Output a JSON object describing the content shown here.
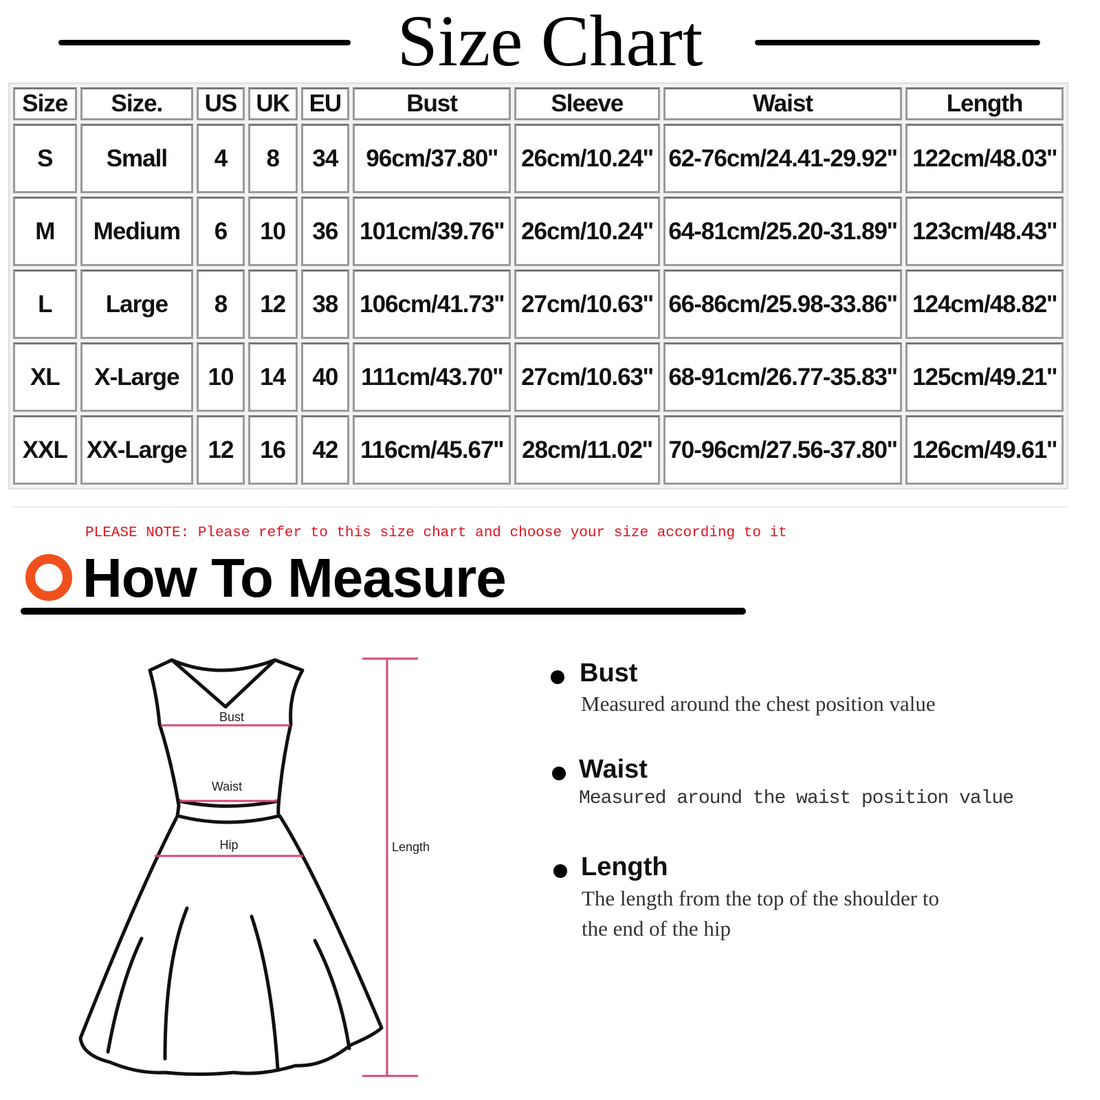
{
  "title": "Size Chart",
  "table": {
    "headers": [
      "Size",
      "Size.",
      "US",
      "UK",
      "EU",
      "Bust",
      "Sleeve",
      "Waist",
      "Length"
    ],
    "rows": [
      [
        "S",
        "Small",
        "4",
        "8",
        "34",
        "96cm/37.80''",
        "26cm/10.24''",
        "62-76cm/24.41-29.92''",
        "122cm/48.03''"
      ],
      [
        "M",
        "Medium",
        "6",
        "10",
        "36",
        "101cm/39.76''",
        "26cm/10.24''",
        "64-81cm/25.20-31.89''",
        "123cm/48.43''"
      ],
      [
        "L",
        "Large",
        "8",
        "12",
        "38",
        "106cm/41.73''",
        "27cm/10.63''",
        "66-86cm/25.98-33.86''",
        "124cm/48.82''"
      ],
      [
        "XL",
        "X-Large",
        "10",
        "14",
        "40",
        "111cm/43.70''",
        "27cm/10.63''",
        "68-91cm/26.77-35.83''",
        "125cm/49.21''"
      ],
      [
        "XXL",
        "XX-Large",
        "12",
        "16",
        "42",
        "116cm/45.67''",
        "28cm/11.02''",
        "70-96cm/27.56-37.80''",
        "126cm/49.61''"
      ]
    ]
  },
  "note": "PLEASE NOTE: Please refer to this size chart and choose your size according to it",
  "measure": {
    "title": "How To Measure",
    "accent": "#f0501e",
    "diagram": {
      "bust": "Bust",
      "waist": "Waist",
      "hip": "Hip",
      "length": "Length",
      "line_color": "#d9487a"
    },
    "items": [
      {
        "label": "Bust",
        "desc": [
          "Measured around the chest position value"
        ]
      },
      {
        "label": "Waist",
        "desc": [
          "Measured around the waist position value"
        ]
      },
      {
        "label": "Length",
        "desc": [
          "The length from the top of the shoulder to",
          "the end of the hip"
        ]
      }
    ]
  }
}
